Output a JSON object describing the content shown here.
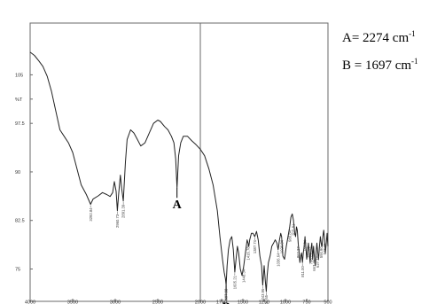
{
  "chart_data": {
    "type": "line",
    "title": "",
    "xlabel": "",
    "ylabel": "%T",
    "xlim": [
      4000,
      500
    ],
    "ylim": [
      70,
      113
    ],
    "x_ticks": [
      4000,
      3500,
      3000,
      2500,
      2000,
      1750,
      1500,
      1250,
      1000,
      750,
      500
    ],
    "y_ticks": [
      {
        "value": 105,
        "label": "105"
      },
      {
        "value": 101.25,
        "label": "%T"
      },
      {
        "value": 97.5,
        "label": "97.5"
      },
      {
        "value": 90,
        "label": "90"
      },
      {
        "value": 82.5,
        "label": "82.5"
      },
      {
        "value": 75,
        "label": "75"
      }
    ],
    "grid": false,
    "divider_x": 2000,
    "series": [
      {
        "x": [
          4000,
          3950,
          3900,
          3850,
          3800,
          3750,
          3700,
          3650,
          3600,
          3550,
          3500,
          3450,
          3400,
          3340,
          3290,
          3260,
          3200,
          3150,
          3100,
          3060,
          3030,
          3010,
          2990,
          2975,
          2960,
          2940,
          2925,
          2905,
          2880,
          2860,
          2820,
          2780,
          2740,
          2700,
          2650,
          2600,
          2550,
          2500,
          2470,
          2420,
          2380,
          2340,
          2310,
          2290,
          2274,
          2255,
          2230,
          2200,
          2150,
          2100,
          2050,
          2000,
          1950,
          1900,
          1850,
          1800,
          1770,
          1740,
          1720,
          1705,
          1697,
          1685,
          1670,
          1650,
          1630,
          1612,
          1595,
          1580,
          1565,
          1550,
          1530,
          1510,
          1490,
          1470,
          1450,
          1440,
          1430,
          1420,
          1400,
          1380,
          1360,
          1340,
          1320,
          1300,
          1280,
          1267,
          1250,
          1235,
          1225,
          1215,
          1200,
          1180,
          1160,
          1140,
          1120,
          1100,
          1085,
          1070,
          1055,
          1045,
          1030,
          1010,
          990,
          970,
          950,
          935,
          920,
          905,
          890,
          880,
          870,
          860,
          850,
          840,
          830,
          820,
          810,
          800,
          790,
          780,
          770,
          760,
          750,
          740,
          730,
          720,
          710,
          700,
          690,
          680,
          670,
          660,
          650,
          640,
          630,
          620,
          610,
          600,
          590,
          580,
          570,
          560,
          550,
          540,
          530,
          520,
          510,
          500
        ],
        "y": [
          108.5,
          108,
          107.2,
          106.3,
          104.8,
          102.5,
          99.5,
          96.5,
          95.5,
          94.5,
          93,
          90.5,
          88,
          86.5,
          85,
          85.8,
          86.3,
          86.8,
          86.5,
          86.2,
          86.8,
          88.5,
          87,
          84,
          86.5,
          89.5,
          87.5,
          85.5,
          91.5,
          95,
          96.5,
          96,
          95,
          94,
          94.5,
          96,
          97.5,
          98,
          97.8,
          97,
          96.5,
          95.5,
          94.5,
          92,
          87.5,
          92.5,
          94.5,
          95.5,
          95.5,
          94.8,
          94.2,
          93.5,
          92.5,
          90.5,
          88,
          84,
          80,
          76.5,
          74.5,
          73.5,
          72.5,
          75.5,
          78,
          79.5,
          80,
          78,
          74.5,
          76.5,
          78.5,
          77.5,
          75,
          74,
          75.5,
          77.5,
          79.5,
          79,
          78.5,
          79.5,
          80.5,
          80.5,
          80,
          80.8,
          79.5,
          77,
          75.5,
          72.5,
          75.5,
          73,
          71.5,
          74,
          76,
          77,
          78.5,
          79,
          79.5,
          79,
          78,
          79.5,
          80.5,
          80,
          77,
          76.5,
          78.5,
          80,
          81.5,
          83,
          83.5,
          82.5,
          80.5,
          80,
          81.5,
          81,
          79,
          77.5,
          76,
          77,
          77.5,
          76,
          77.5,
          78.5,
          80,
          78.5,
          76.5,
          78,
          79,
          77.5,
          76,
          78,
          79,
          76.5,
          78.5,
          77,
          75.5,
          77.5,
          79,
          77.5,
          76.5,
          78.5,
          80,
          79,
          78.5,
          80,
          81,
          79.5,
          77.5,
          79,
          80.5,
          78.5
        ]
      }
    ],
    "peak_labels": [
      {
        "x": 3290,
        "label": "3292.84"
      },
      {
        "x": 2975,
        "label": "2960.73"
      },
      {
        "x": 2905,
        "label": "2891.39"
      },
      {
        "x": 1697,
        "label": "1697.98"
      },
      {
        "x": 1595,
        "label": "1605.21"
      },
      {
        "x": 1490,
        "label": "1448.34"
      },
      {
        "x": 1440,
        "label": "1416.78"
      },
      {
        "x": 1360,
        "label": "1387.74"
      },
      {
        "x": 1267,
        "label": "1243.96"
      },
      {
        "x": 1225,
        "label": "1231.65"
      },
      {
        "x": 1085,
        "label": "1036.64"
      },
      {
        "x": 1045,
        "label": "1026.84"
      },
      {
        "x": 950,
        "label": "980.84"
      },
      {
        "x": 905,
        "label": "915.81"
      },
      {
        "x": 850,
        "label": "862.27"
      },
      {
        "x": 800,
        "label": "811.00"
      },
      {
        "x": 770,
        "label": "785.84"
      },
      {
        "x": 730,
        "label": "750.00"
      },
      {
        "x": 700,
        "label": "708.71"
      },
      {
        "x": 660,
        "label": "667.46"
      },
      {
        "x": 620,
        "label": "627.34"
      },
      {
        "x": 580,
        "label": "594.90"
      },
      {
        "x": 540,
        "label": "548.40"
      }
    ],
    "annotations": [
      {
        "label": "A",
        "x": 2274
      },
      {
        "label": "B",
        "x": 1697
      }
    ]
  },
  "legend": {
    "a_text": "A= 2274 cm",
    "b_text": "B = 1697 cm",
    "exponent": "-1"
  }
}
